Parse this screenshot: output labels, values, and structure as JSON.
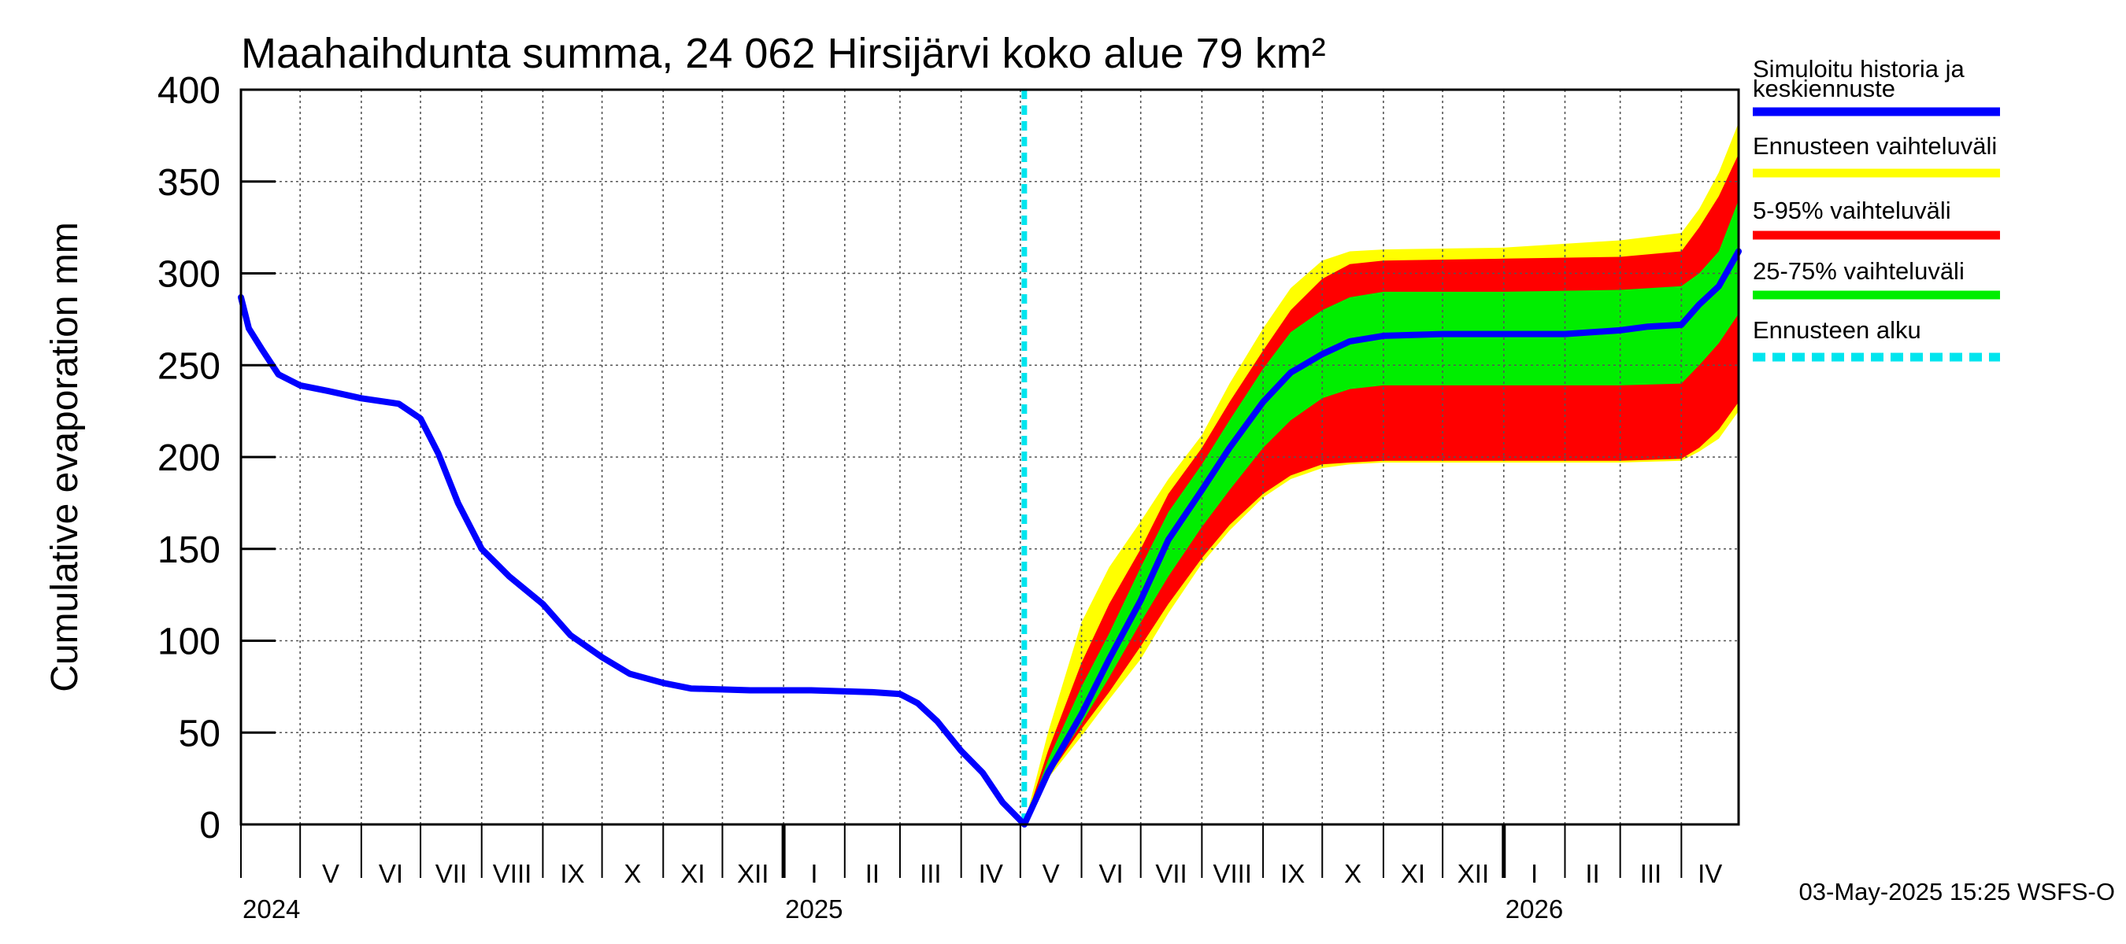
{
  "chart_data": {
    "type": "area",
    "title": "Maahaihdunta summa, 24 062 Hirsijärvi koko alue 79 km²",
    "ylabel": "Cumulative evaporation   mm",
    "xlabel": "",
    "ylim": [
      0,
      400
    ],
    "yticks": [
      0,
      50,
      100,
      150,
      200,
      250,
      300,
      350,
      400
    ],
    "xlim": [
      "2024-04-01",
      "2026-04-30"
    ],
    "grid": true,
    "legend_position": "right",
    "months": [
      {
        "label": "V",
        "start": "2024-05-01"
      },
      {
        "label": "VI",
        "start": "2024-06-01"
      },
      {
        "label": "VII",
        "start": "2024-07-01"
      },
      {
        "label": "VIII",
        "start": "2024-08-01"
      },
      {
        "label": "IX",
        "start": "2024-09-01"
      },
      {
        "label": "X",
        "start": "2024-10-01"
      },
      {
        "label": "XI",
        "start": "2024-11-01"
      },
      {
        "label": "XII",
        "start": "2024-12-01"
      },
      {
        "label": "I",
        "start": "2025-01-01"
      },
      {
        "label": "II",
        "start": "2025-02-01"
      },
      {
        "label": "III",
        "start": "2025-03-01"
      },
      {
        "label": "IV",
        "start": "2025-04-01"
      },
      {
        "label": "V",
        "start": "2025-05-01"
      },
      {
        "label": "VI",
        "start": "2025-06-01"
      },
      {
        "label": "VII",
        "start": "2025-07-01"
      },
      {
        "label": "VIII",
        "start": "2025-08-01"
      },
      {
        "label": "IX",
        "start": "2025-09-01"
      },
      {
        "label": "X",
        "start": "2025-10-01"
      },
      {
        "label": "XI",
        "start": "2025-11-01"
      },
      {
        "label": "XII",
        "start": "2025-12-01"
      },
      {
        "label": "I",
        "start": "2026-01-01"
      },
      {
        "label": "II",
        "start": "2026-02-01"
      },
      {
        "label": "III",
        "start": "2026-03-01"
      },
      {
        "label": "IV",
        "start": "2026-04-01"
      }
    ],
    "years": [
      {
        "label": "2024",
        "start": "2024-04-01"
      },
      {
        "label": "2025",
        "start": "2025-01-01"
      },
      {
        "label": "2026",
        "start": "2026-01-01"
      }
    ],
    "forecast_start": "2025-05-03",
    "series": [
      {
        "name": "Simuloitu historia ja keskiennuste",
        "color": "#0000ff",
        "points": [
          [
            "2024-04-01",
            287
          ],
          [
            "2024-04-05",
            270
          ],
          [
            "2024-04-12",
            258
          ],
          [
            "2024-04-20",
            245
          ],
          [
            "2024-05-01",
            239
          ],
          [
            "2024-05-15",
            236
          ],
          [
            "2024-06-01",
            232
          ],
          [
            "2024-06-20",
            229
          ],
          [
            "2024-07-01",
            221
          ],
          [
            "2024-07-10",
            202
          ],
          [
            "2024-07-20",
            175
          ],
          [
            "2024-08-01",
            150
          ],
          [
            "2024-08-15",
            135
          ],
          [
            "2024-09-01",
            120
          ],
          [
            "2024-09-15",
            103
          ],
          [
            "2024-10-01",
            91
          ],
          [
            "2024-10-15",
            82
          ],
          [
            "2024-11-01",
            77
          ],
          [
            "2024-11-15",
            74
          ],
          [
            "2024-12-15",
            73
          ],
          [
            "2025-01-15",
            73
          ],
          [
            "2025-02-15",
            72
          ],
          [
            "2025-03-01",
            71
          ],
          [
            "2025-03-10",
            66
          ],
          [
            "2025-03-20",
            56
          ],
          [
            "2025-04-01",
            40
          ],
          [
            "2025-04-12",
            28
          ],
          [
            "2025-04-22",
            12
          ],
          [
            "2025-05-03",
            0
          ],
          [
            "2025-05-15",
            28
          ],
          [
            "2025-06-01",
            60
          ],
          [
            "2025-06-15",
            90
          ],
          [
            "2025-07-01",
            122
          ],
          [
            "2025-07-15",
            155
          ],
          [
            "2025-08-01",
            182
          ],
          [
            "2025-08-15",
            205
          ],
          [
            "2025-09-01",
            230
          ],
          [
            "2025-09-15",
            246
          ],
          [
            "2025-10-01",
            256
          ],
          [
            "2025-10-15",
            263
          ],
          [
            "2025-11-01",
            266
          ],
          [
            "2025-12-01",
            267
          ],
          [
            "2026-01-01",
            267
          ],
          [
            "2026-02-01",
            267
          ],
          [
            "2026-03-01",
            269
          ],
          [
            "2026-03-15",
            271
          ],
          [
            "2026-04-01",
            272
          ],
          [
            "2026-04-10",
            283
          ],
          [
            "2026-04-20",
            293
          ],
          [
            "2026-04-30",
            312
          ]
        ]
      },
      {
        "name": "Ennusteen vaihteluväli",
        "color": "#ffff00",
        "points": [
          [
            "2025-05-03",
            0,
            0
          ],
          [
            "2025-05-15",
            25,
            50
          ],
          [
            "2025-06-01",
            48,
            110
          ],
          [
            "2025-06-15",
            68,
            140
          ],
          [
            "2025-07-01",
            90,
            165
          ],
          [
            "2025-07-15",
            115,
            188
          ],
          [
            "2025-08-01",
            142,
            212
          ],
          [
            "2025-08-15",
            160,
            240
          ],
          [
            "2025-09-01",
            178,
            270
          ],
          [
            "2025-09-15",
            188,
            292
          ],
          [
            "2025-10-01",
            194,
            307
          ],
          [
            "2025-10-15",
            196,
            312
          ],
          [
            "2025-11-01",
            197,
            313
          ],
          [
            "2026-01-01",
            197,
            314
          ],
          [
            "2026-03-01",
            197,
            318
          ],
          [
            "2026-04-01",
            198,
            322
          ],
          [
            "2026-04-10",
            203,
            335
          ],
          [
            "2026-04-20",
            210,
            355
          ],
          [
            "2026-04-30",
            225,
            382
          ]
        ]
      },
      {
        "name": "5-95% vaihteluväli",
        "color": "#ff0000",
        "points": [
          [
            "2025-05-03",
            0,
            0
          ],
          [
            "2025-05-15",
            26,
            40
          ],
          [
            "2025-06-01",
            52,
            88
          ],
          [
            "2025-06-15",
            72,
            120
          ],
          [
            "2025-07-01",
            97,
            150
          ],
          [
            "2025-07-15",
            120,
            180
          ],
          [
            "2025-08-01",
            145,
            205
          ],
          [
            "2025-08-15",
            163,
            230
          ],
          [
            "2025-09-01",
            180,
            258
          ],
          [
            "2025-09-15",
            190,
            280
          ],
          [
            "2025-10-01",
            196,
            297
          ],
          [
            "2025-10-15",
            197,
            305
          ],
          [
            "2025-11-01",
            198,
            307
          ],
          [
            "2026-01-01",
            198,
            308
          ],
          [
            "2026-03-01",
            198,
            309
          ],
          [
            "2026-04-01",
            199,
            312
          ],
          [
            "2026-04-10",
            205,
            325
          ],
          [
            "2026-04-20",
            215,
            342
          ],
          [
            "2026-04-30",
            230,
            365
          ]
        ]
      },
      {
        "name": "25-75% vaihteluväli",
        "color": "#00ee00",
        "points": [
          [
            "2025-05-03",
            0,
            0
          ],
          [
            "2025-05-15",
            27,
            35
          ],
          [
            "2025-06-01",
            55,
            75
          ],
          [
            "2025-06-15",
            80,
            104
          ],
          [
            "2025-07-01",
            110,
            140
          ],
          [
            "2025-07-15",
            135,
            170
          ],
          [
            "2025-08-01",
            162,
            196
          ],
          [
            "2025-08-15",
            182,
            220
          ],
          [
            "2025-09-01",
            205,
            248
          ],
          [
            "2025-09-15",
            220,
            268
          ],
          [
            "2025-10-01",
            232,
            280
          ],
          [
            "2025-10-15",
            237,
            287
          ],
          [
            "2025-11-01",
            239,
            290
          ],
          [
            "2026-01-01",
            239,
            290
          ],
          [
            "2026-03-01",
            239,
            291
          ],
          [
            "2026-04-01",
            240,
            293
          ],
          [
            "2026-04-10",
            250,
            300
          ],
          [
            "2026-04-20",
            262,
            312
          ],
          [
            "2026-04-30",
            278,
            340
          ]
        ]
      },
      {
        "name": "Ennusteen alku",
        "color": "#00e5ee",
        "points": [
          [
            "2025-05-03",
            0
          ],
          [
            "2025-05-03",
            400
          ]
        ]
      }
    ],
    "legend": [
      {
        "label": "Simuloitu historia ja keskiennuste",
        "color": "#0000ff",
        "style": "solid"
      },
      {
        "label": "Ennusteen vaihteluväli",
        "color": "#ffff00",
        "style": "solid"
      },
      {
        "label": "5-95% vaihteluväli",
        "color": "#ff0000",
        "style": "solid"
      },
      {
        "label": "25-75% vaihteluväli",
        "color": "#00ee00",
        "style": "solid"
      },
      {
        "label": "Ennusteen alku",
        "color": "#00e5ee",
        "style": "dashed"
      }
    ]
  },
  "footer": "03-May-2025 15:25 WSFS-O"
}
